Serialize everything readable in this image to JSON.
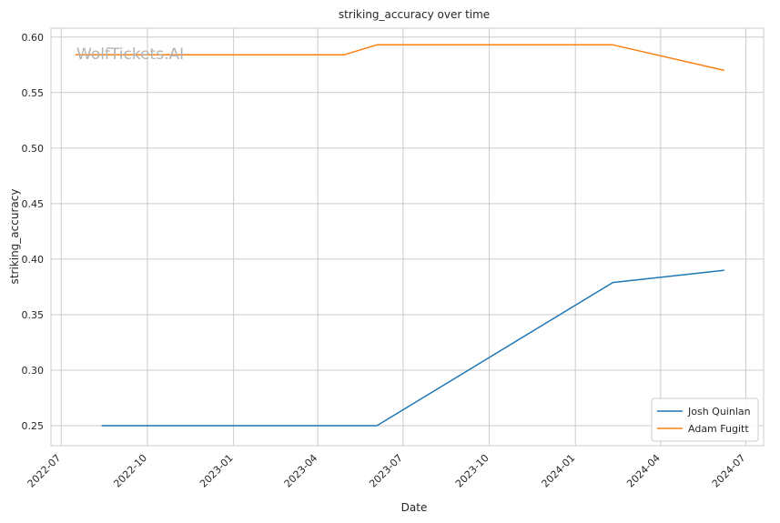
{
  "chart_data": {
    "type": "line",
    "title": "striking_accuracy over time",
    "xlabel": "Date",
    "ylabel": "striking_accuracy",
    "watermark": "WolfTickets.AI",
    "x_ticks": [
      "2022-07",
      "2022-10",
      "2023-01",
      "2023-04",
      "2023-07",
      "2023-10",
      "2024-01",
      "2024-04",
      "2024-07"
    ],
    "x_tick_dates": [
      "2022-07-01",
      "2022-10-01",
      "2023-01-01",
      "2023-04-01",
      "2023-07-01",
      "2023-10-01",
      "2024-01-01",
      "2024-04-01",
      "2024-07-01"
    ],
    "xlim": [
      "2022-06-20",
      "2024-07-20"
    ],
    "y_ticks": [
      "0.25",
      "0.30",
      "0.35",
      "0.40",
      "0.45",
      "0.50",
      "0.55",
      "0.60"
    ],
    "ylim": [
      0.232,
      0.608
    ],
    "grid": true,
    "legend_position": "lower-right",
    "series": [
      {
        "name": "Josh Quinlan",
        "color": "#1f77b4",
        "points": [
          {
            "x": "2022-08-13",
            "y": 0.25
          },
          {
            "x": "2023-06-03",
            "y": 0.25
          },
          {
            "x": "2024-02-10",
            "y": 0.379
          },
          {
            "x": "2024-06-08",
            "y": 0.39
          }
        ]
      },
      {
        "name": "Adam Fugitt",
        "color": "#ff7f0e",
        "points": [
          {
            "x": "2022-07-16",
            "y": 0.584
          },
          {
            "x": "2023-04-29",
            "y": 0.584
          },
          {
            "x": "2023-06-03",
            "y": 0.593
          },
          {
            "x": "2024-02-10",
            "y": 0.593
          },
          {
            "x": "2024-06-08",
            "y": 0.57
          }
        ]
      }
    ]
  }
}
